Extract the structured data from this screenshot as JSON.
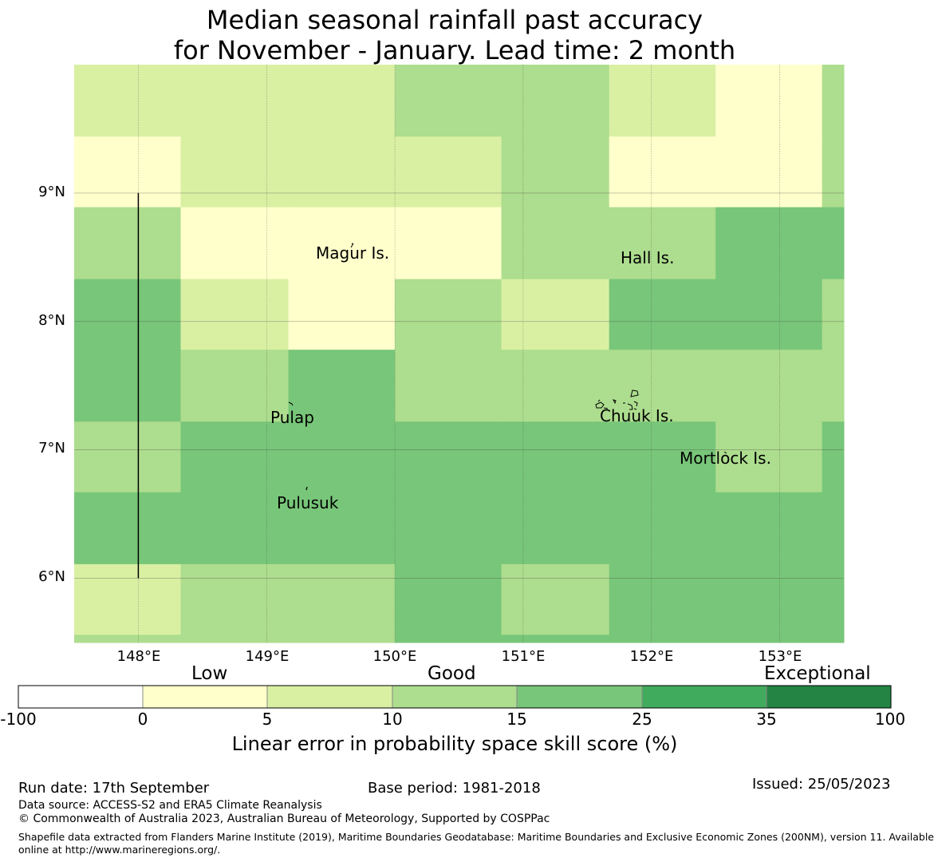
{
  "title": {
    "line1": "Median seasonal rainfall past accuracy",
    "line2": "for November - January. Lead time: 2 month"
  },
  "map": {
    "lon_range": [
      147.5,
      153.5
    ],
    "lat_range": [
      5.5,
      10.0
    ],
    "lon_ticks": [
      "148°E",
      "149°E",
      "150°E",
      "151°E",
      "152°E",
      "153°E"
    ],
    "lat_ticks": [
      "9°N",
      "8°N",
      "7°N",
      "6°N"
    ],
    "grid_colors": [
      "#ffffff",
      "#ffffcc",
      "#d9f0a3",
      "#addd8e",
      "#78c679",
      "#41ab5d",
      "#238443"
    ],
    "columns_lon": [
      147.5,
      148.33,
      149.17,
      150.0,
      150.83,
      151.67,
      152.5,
      153.33,
      153.5
    ],
    "rows_lat": [
      10.0,
      9.44,
      8.89,
      8.33,
      7.78,
      7.22,
      6.67,
      6.11,
      5.56,
      5.5
    ],
    "cells": [
      [
        2,
        2,
        2,
        3,
        3,
        2,
        1,
        3
      ],
      [
        1,
        2,
        2,
        2,
        3,
        1,
        1,
        3
      ],
      [
        3,
        1,
        1,
        1,
        3,
        3,
        4,
        4
      ],
      [
        4,
        2,
        1,
        3,
        2,
        4,
        4,
        3
      ],
      [
        4,
        3,
        4,
        3,
        3,
        3,
        3,
        3
      ],
      [
        3,
        4,
        4,
        4,
        4,
        4,
        3,
        4
      ],
      [
        4,
        4,
        4,
        4,
        4,
        4,
        4,
        4
      ],
      [
        2,
        3,
        3,
        4,
        3,
        4,
        4,
        4
      ],
      [
        3,
        3,
        3,
        4,
        4,
        4,
        4,
        4
      ]
    ],
    "places": [
      {
        "name": "Magur Is.",
        "lon": 149.38,
        "lat": 8.5
      },
      {
        "name": "Hall Is.",
        "lon": 151.75,
        "lat": 8.47
      },
      {
        "name": "Pulap",
        "lon": 149.03,
        "lat": 7.22
      },
      {
        "name": "Chuuk Is.",
        "lon": 151.6,
        "lat": 7.24
      },
      {
        "name": "Mortlock Is.",
        "lon": 152.22,
        "lat": 6.91
      },
      {
        "name": "Pulusuk",
        "lon": 149.08,
        "lat": 6.56
      }
    ],
    "boundary_line": {
      "lon": 148.0,
      "lat_from": 6.0,
      "lat_to": 9.0
    }
  },
  "legend": {
    "categories": {
      "low": "Low",
      "good": "Good",
      "exceptional": "Exceptional"
    },
    "bounds": [
      "-100",
      "0",
      "5",
      "10",
      "15",
      "25",
      "35",
      "100"
    ],
    "colors": [
      "#ffffff",
      "#ffffcc",
      "#d9f0a3",
      "#addd8e",
      "#78c679",
      "#41ab5d",
      "#238443"
    ],
    "label": "Linear error in probability space skill score (%)"
  },
  "footer": {
    "run_date": "Run date: 17th September",
    "base_period": "Base period: 1981-2018",
    "issued": "Issued: 25/05/2023",
    "data_source": "Data source: ACCESS-S2 and ERA5 Climate Reanalysis",
    "copyright": "© Commonwealth of Australia 2023, Australian Bureau of Meteorology, Supported by COSPPac",
    "shapefile_line1": "Shapefile data extracted from Flanders Marine Institute (2019), Maritime Boundaries Geodatabase: Maritime Boundaries and Exclusive Economic Zones (200NM), version 11. Available",
    "shapefile_line2": "online at http://www.marineregions.org/."
  }
}
